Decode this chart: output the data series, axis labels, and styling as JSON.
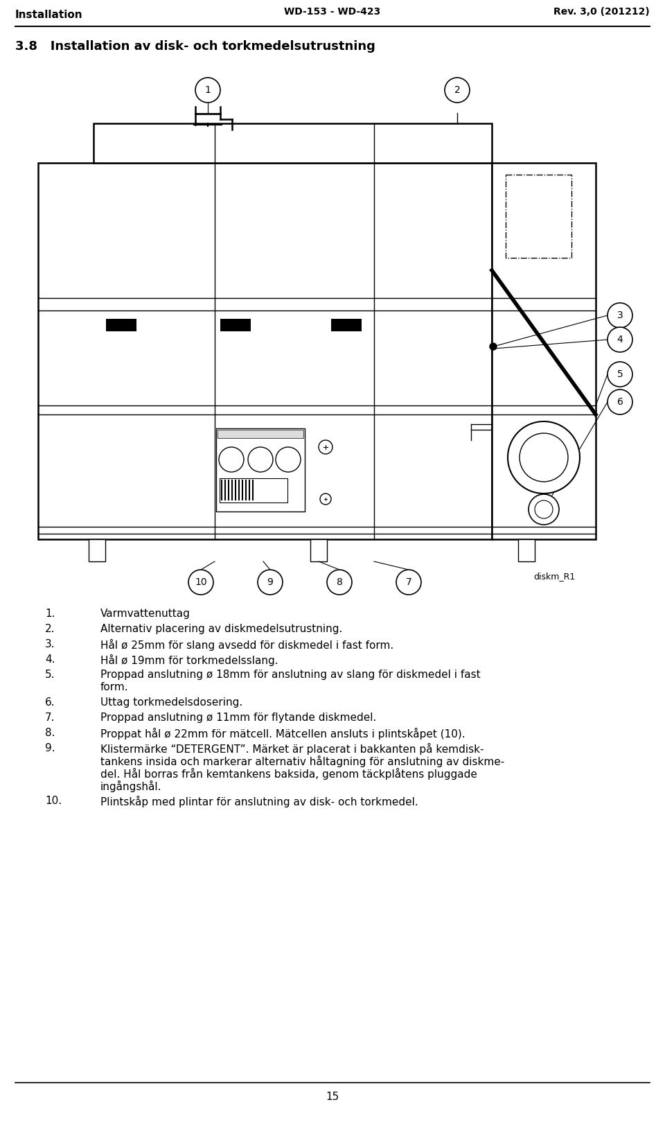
{
  "header_left": "Installation",
  "header_center": "WD-153 - WD-423",
  "header_right": "Rev. 3,0 (201212)",
  "section_title": "3.8   Installation av disk- och torkmedelsutrustning",
  "image_label": "diskm_R1",
  "footer_page": "15",
  "list_items": [
    {
      "num": "1.",
      "text": "Varmvattenuttag"
    },
    {
      "num": "2.",
      "text": "Alternativ placering av diskmedelsutrustning."
    },
    {
      "num": "3.",
      "text": "Hål ø 25mm för slang avsedd för diskmedel i fast form."
    },
    {
      "num": "4.",
      "text": "Hål ø 19mm för torkmedelsslang."
    },
    {
      "num": "5.",
      "text": "Proppad anslutning ø 18mm för anslutning av slang för diskmedel i fast\nform."
    },
    {
      "num": "6.",
      "text": "Uttag torkmedelsdosering."
    },
    {
      "num": "7.",
      "text": "Proppad anslutning ø 11mm för flytande diskmedel."
    },
    {
      "num": "8.",
      "text": "Proppat hål ø 22mm för mätcell. Mätcellen ansluts i plintskåpet (10)."
    },
    {
      "num": "9.",
      "text": "Klistermärke “DETERGENT”. Märket är placerat i bakkanten på kemdisk-\ntankens insida och markerar alternativ håltagning för anslutning av diskme-\ndel. Hål borras från kemtankens baksida, genom täckplåtens pluggade\ningångshål."
    },
    {
      "num": "10.",
      "text": "Plintskåp med plintar för anslutning av disk- och torkmedel."
    }
  ],
  "bg_color": "#ffffff",
  "text_color": "#000000",
  "line_color": "#000000"
}
